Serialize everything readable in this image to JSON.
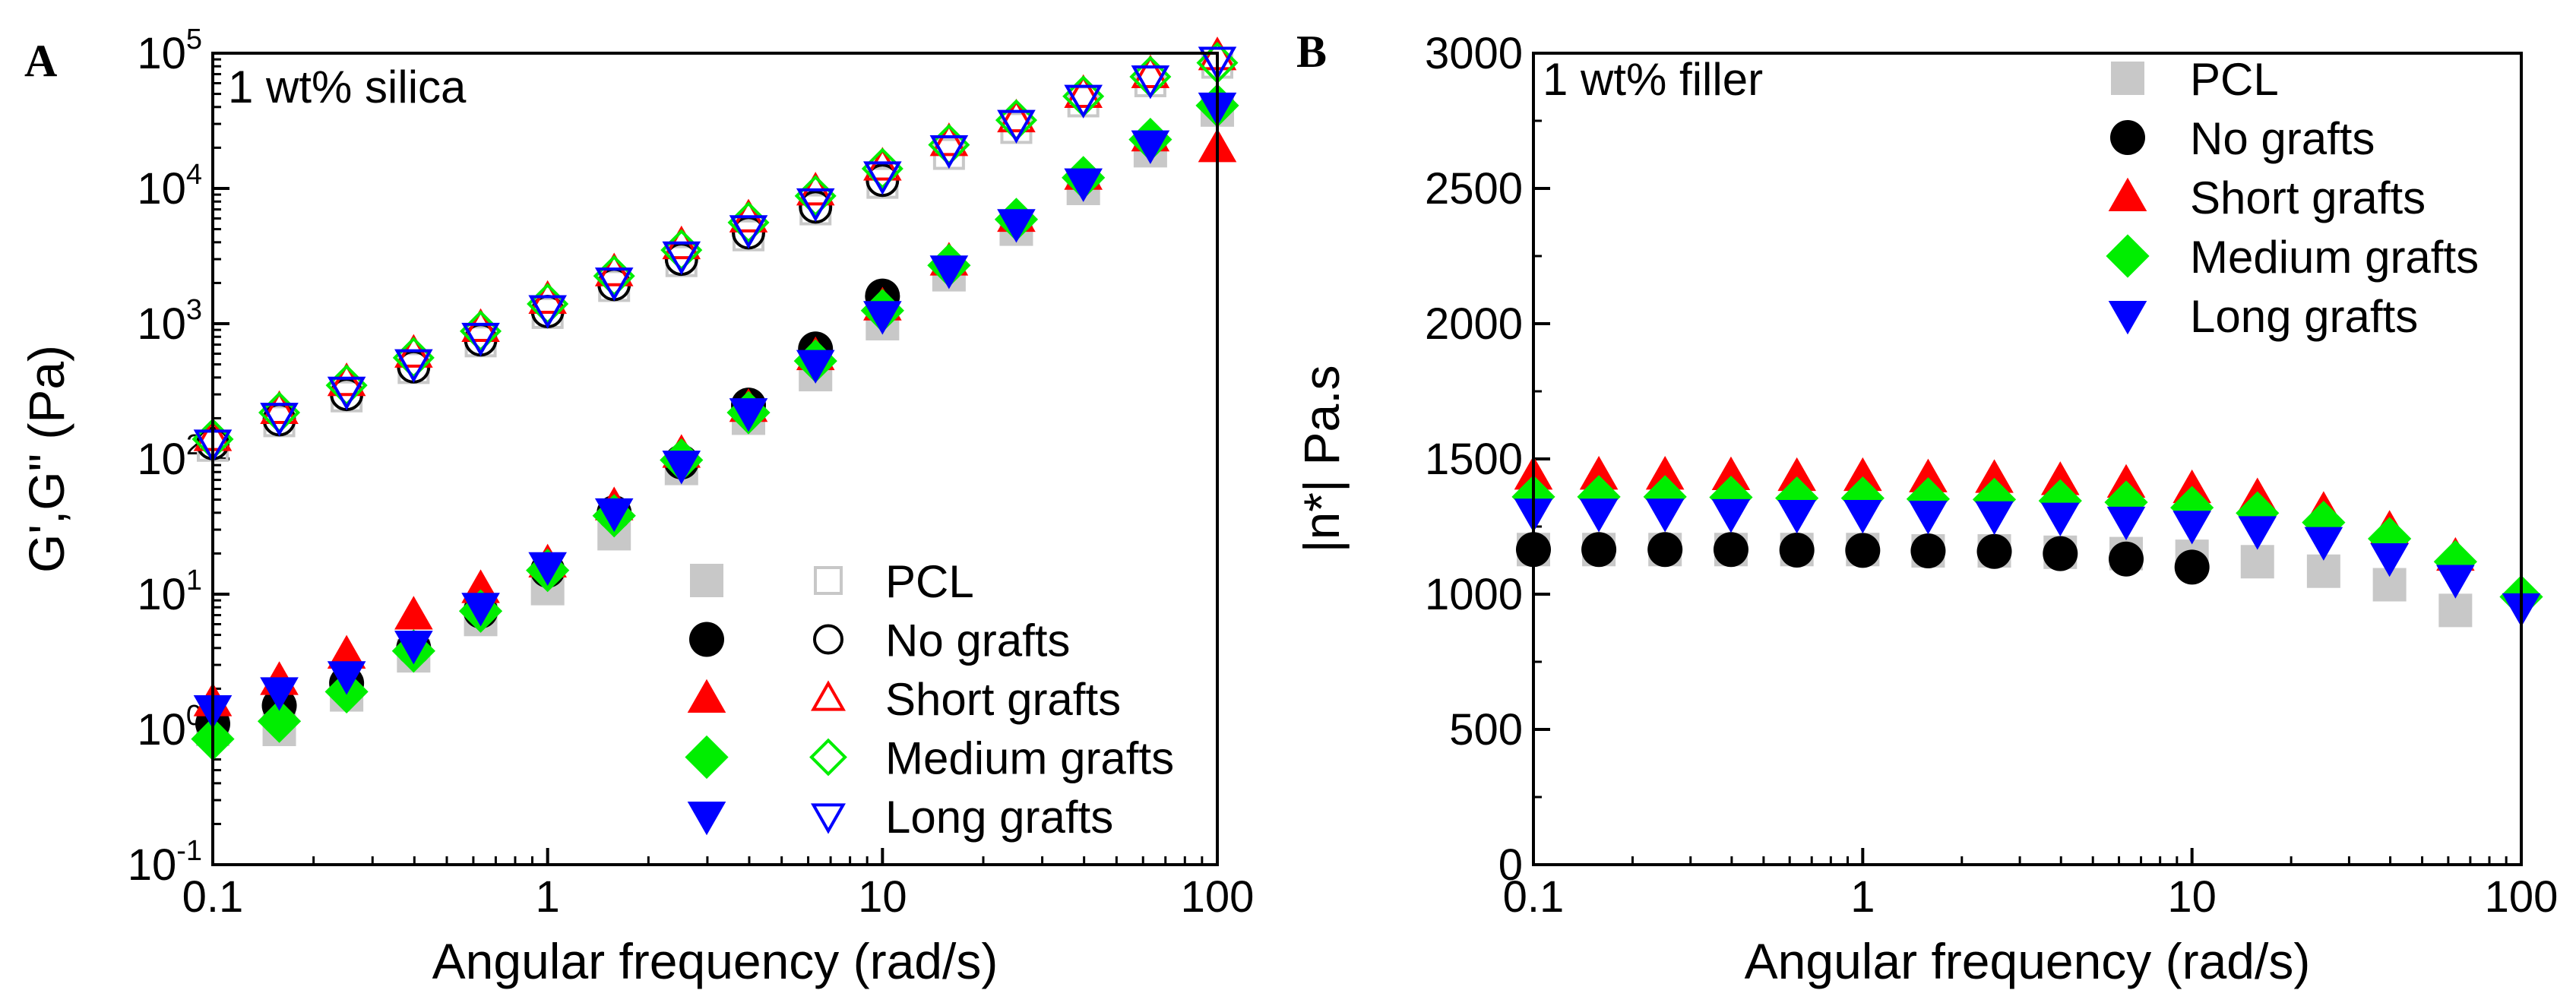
{
  "chart_data": [
    {
      "panel": "A",
      "type": "scatter",
      "annotation": "1 wt% silica",
      "xlabel": "Angular frequency (rad/s)",
      "ylabel": "G',G\" (Pa)",
      "xscale": "log",
      "yscale": "log",
      "xlim": [
        0.1,
        100
      ],
      "ylim": [
        0.1,
        100000
      ],
      "x_ticks": [
        0.1,
        1,
        10,
        100
      ],
      "x_tick_labels": [
        "0.1",
        "1",
        "10",
        "100"
      ],
      "y_ticks": [
        0.1,
        1,
        10,
        100,
        1000,
        10000,
        100000
      ],
      "y_tick_labels": [
        {
          "base": "10",
          "exp": "-1"
        },
        {
          "base": "10",
          "exp": "0"
        },
        {
          "base": "10",
          "exp": "1"
        },
        {
          "base": "10",
          "exp": "2"
        },
        {
          "base": "10",
          "exp": "3"
        },
        {
          "base": "10",
          "exp": "4"
        },
        {
          "base": "10",
          "exp": "5"
        }
      ],
      "legend_placement": "bottom-right",
      "legend": [
        {
          "label": "PCL",
          "color": "#c8c8c8",
          "shape": "square"
        },
        {
          "label": "No grafts",
          "color": "#000000",
          "shape": "circle"
        },
        {
          "label": "Short grafts",
          "color": "#ff0000",
          "shape": "triangle-up"
        },
        {
          "label": "Medium grafts",
          "color": "#00ee00",
          "shape": "diamond"
        },
        {
          "label": "Long grafts",
          "color": "#0000ff",
          "shape": "triangle-down"
        }
      ],
      "x": [
        0.1,
        0.158,
        0.251,
        0.398,
        0.631,
        1,
        1.58,
        2.51,
        3.98,
        6.31,
        10,
        15.8,
        25.1,
        39.8,
        63.1,
        100
      ],
      "series": [
        {
          "name": "PCL",
          "modulus": "G'",
          "fill": "filled",
          "values": [
            1.0,
            1.0,
            1.8,
            3.5,
            6.5,
            11,
            28,
            85,
            200,
            420,
            1000,
            2300,
            5000,
            10000,
            19000,
            38000
          ]
        },
        {
          "name": "No grafts",
          "modulus": "G'",
          "fill": "filled",
          "values": [
            1.1,
            1.5,
            2.2,
            4.0,
            7.5,
            15,
            40,
            95,
            250,
            650,
            1600,
            null,
            null,
            null,
            null,
            null
          ]
        },
        {
          "name": "Short grafts",
          "modulus": "G'",
          "fill": "filled",
          "values": [
            1.6,
            2.3,
            3.6,
            7.0,
            11.0,
            17,
            45,
            110,
            240,
            580,
            1350,
            2900,
            6100,
            12500,
            24000,
            20000
          ]
        },
        {
          "name": "Medium grafts",
          "modulus": "G'",
          "fill": "filled",
          "values": [
            0.85,
            1.15,
            1.9,
            3.8,
            7.5,
            15,
            38,
            98,
            220,
            530,
            1250,
            2700,
            5900,
            12000,
            23000,
            41000
          ]
        },
        {
          "name": "Long grafts",
          "modulus": "G'",
          "fill": "filled",
          "values": [
            1.4,
            1.9,
            2.5,
            4.2,
            8.0,
            16,
            40,
            90,
            220,
            500,
            1150,
            2500,
            5500,
            11000,
            21000,
            40000
          ]
        },
        {
          "name": "PCL",
          "modulus": "G\"",
          "fill": "open",
          "values": [
            125,
            190,
            290,
            470,
            740,
            1200,
            1900,
            2900,
            4500,
            7000,
            11000,
            18000,
            28000,
            44000,
            62000,
            85000
          ]
        },
        {
          "name": "No grafts",
          "modulus": "G\"",
          "fill": "open",
          "values": [
            130,
            195,
            300,
            480,
            760,
            1230,
            1950,
            3000,
            4700,
            7300,
            11500,
            null,
            null,
            null,
            null,
            null
          ]
        },
        {
          "name": "Short grafts",
          "modulus": "G\"",
          "fill": "open",
          "values": [
            145,
            230,
            370,
            600,
            930,
            1500,
            2400,
            3800,
            6000,
            9500,
            14500,
            22000,
            33000,
            50000,
            70000,
            95000
          ]
        },
        {
          "name": "Medium grafts",
          "modulus": "G\"",
          "fill": "open",
          "values": [
            140,
            220,
            350,
            560,
            880,
            1400,
            2250,
            3500,
            5600,
            8800,
            14000,
            21000,
            32000,
            48000,
            67000,
            85000
          ]
        },
        {
          "name": "Long grafts",
          "modulus": "G\"",
          "fill": "open",
          "values": [
            130,
            205,
            320,
            510,
            800,
            1280,
            2050,
            3200,
            5000,
            7900,
            12500,
            19500,
            30000,
            46000,
            64000,
            88000
          ]
        }
      ]
    },
    {
      "panel": "B",
      "type": "scatter",
      "annotation": "1 wt% filler",
      "xlabel": "Angular frequency (rad/s)",
      "ylabel": "|n*| Pa.s",
      "xscale": "log",
      "yscale": "linear",
      "xlim": [
        0.1,
        100
      ],
      "ylim": [
        0,
        3000
      ],
      "x_ticks": [
        0.1,
        1,
        10,
        100
      ],
      "x_tick_labels": [
        "0.1",
        "1",
        "10",
        "100"
      ],
      "y_ticks": [
        0,
        500,
        1000,
        1500,
        2000,
        2500,
        3000
      ],
      "y_tick_labels": [
        "0",
        "500",
        "1000",
        "1500",
        "2000",
        "2500",
        "3000"
      ],
      "legend_placement": "top-right",
      "legend": [
        {
          "label": "PCL",
          "color": "#c8c8c8",
          "shape": "square"
        },
        {
          "label": "No grafts",
          "color": "#000000",
          "shape": "circle"
        },
        {
          "label": "Short grafts",
          "color": "#ff0000",
          "shape": "triangle-up"
        },
        {
          "label": "Medium grafts",
          "color": "#00ee00",
          "shape": "diamond"
        },
        {
          "label": "Long grafts",
          "color": "#0000ff",
          "shape": "triangle-down"
        }
      ],
      "x": [
        0.1,
        0.158,
        0.251,
        0.398,
        0.631,
        1,
        1.58,
        2.51,
        3.98,
        6.31,
        10,
        15.8,
        25.1,
        39.8,
        63.1,
        100
      ],
      "series": [
        {
          "name": "PCL",
          "values": [
            1165,
            1165,
            1165,
            1165,
            1165,
            1165,
            1160,
            1160,
            1155,
            1150,
            1140,
            1120,
            1085,
            1035,
            940,
            null
          ]
        },
        {
          "name": "No grafts",
          "values": [
            1165,
            1165,
            1165,
            1165,
            1163,
            1162,
            1160,
            1158,
            1150,
            1130,
            1100,
            null,
            null,
            null,
            null,
            null
          ]
        },
        {
          "name": "Short grafts",
          "values": [
            1440,
            1440,
            1440,
            1438,
            1435,
            1435,
            1430,
            1428,
            1420,
            1410,
            1390,
            1360,
            1310,
            1240,
            1140,
            null
          ]
        },
        {
          "name": "Medium grafts",
          "values": [
            1360,
            1360,
            1360,
            1358,
            1355,
            1355,
            1352,
            1350,
            1345,
            1340,
            1320,
            1300,
            1265,
            1205,
            1120,
            990
          ]
        },
        {
          "name": "Long grafts",
          "values": [
            1300,
            1300,
            1300,
            1298,
            1295,
            1295,
            1292,
            1290,
            1285,
            1270,
            1255,
            1235,
            1195,
            1135,
            1055,
            950
          ]
        }
      ]
    }
  ]
}
